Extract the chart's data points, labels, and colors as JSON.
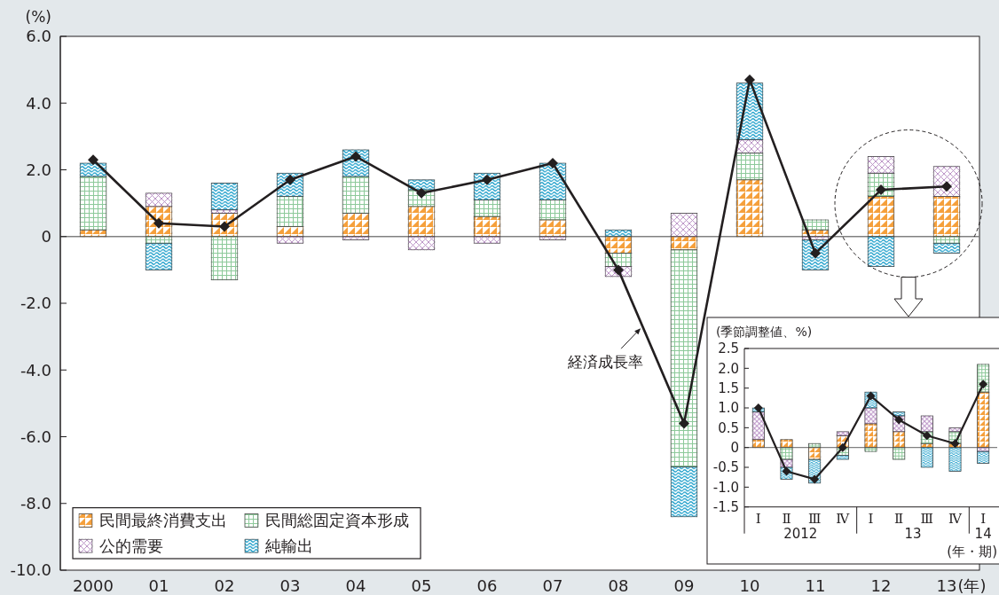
{
  "chart_data": [
    {
      "type": "bar",
      "stacked": true,
      "ylabel": "(%)",
      "xlabel": "(年)",
      "categories": [
        "2000",
        "01",
        "02",
        "03",
        "04",
        "05",
        "06",
        "07",
        "08",
        "09",
        "10",
        "11",
        "12",
        "13"
      ],
      "series": [
        {
          "name": "民間最終消費支出",
          "color": "#f5a03c",
          "values": [
            0.2,
            0.9,
            0.7,
            0.3,
            0.7,
            0.9,
            0.6,
            0.5,
            -0.5,
            -0.4,
            1.7,
            0.2,
            1.2,
            1.2
          ]
        },
        {
          "name": "民間総固定資本形成",
          "color": "#8dc99a",
          "values": [
            1.6,
            -0.2,
            -1.3,
            0.9,
            1.1,
            0.5,
            0.5,
            0.6,
            -0.4,
            -6.5,
            0.8,
            0.3,
            0.7,
            -0.2
          ]
        },
        {
          "name": "公的需要",
          "color": "#b58bc2",
          "values": [
            null,
            0.4,
            0.1,
            -0.2,
            -0.1,
            -0.4,
            -0.2,
            -0.1,
            -0.3,
            0.7,
            0.4,
            -0.1,
            0.5,
            0.9
          ]
        },
        {
          "name": "純輸出",
          "color": "#1a9dc9",
          "values": [
            0.4,
            -0.8,
            0.8,
            0.7,
            0.8,
            0.3,
            0.8,
            1.1,
            0.2,
            -1.5,
            1.7,
            -0.9,
            -0.9,
            -0.3
          ]
        },
        {
          "type": "line",
          "name": "経済成長率",
          "color": "#231f20",
          "values": [
            2.3,
            0.4,
            0.3,
            1.7,
            2.4,
            1.3,
            1.7,
            2.2,
            -1.0,
            -5.6,
            4.7,
            -0.5,
            1.4,
            1.5
          ]
        }
      ],
      "ylim": [
        -10,
        6
      ],
      "yticks": [
        {
          "value": 6,
          "label": "6.0"
        },
        {
          "value": 4,
          "label": "4.0"
        },
        {
          "value": 2,
          "label": "2.0"
        },
        0,
        {
          "value": -2,
          "label": "-2.0"
        },
        {
          "value": -4,
          "label": "-4.0"
        },
        {
          "value": -6,
          "label": "-6.0"
        },
        {
          "value": -8,
          "label": "-8.0"
        },
        {
          "value": -10,
          "label": "-10.0"
        }
      ],
      "marker": "diamond",
      "legend": "bottom left",
      "ref_lines": [
        {
          "axis": "y",
          "value": 0,
          "color": "#808080"
        }
      ]
    },
    {
      "type": "bar",
      "stacked": true,
      "ylabel": "(季節調整値、%)",
      "xlabel": "(年・期)",
      "categories": [
        "Ⅰ",
        "Ⅱ",
        "Ⅲ",
        "Ⅳ",
        "Ⅰ",
        "Ⅱ",
        "Ⅲ",
        "Ⅳ",
        "Ⅰ"
      ],
      "annotations": [
        "2012",
        "13",
        "14"
      ],
      "series": [
        {
          "color": "#f5a03c",
          "values": [
            0.2,
            0.2,
            -0.3,
            0.3,
            0.6,
            0.4,
            0.1,
            0.1,
            1.4
          ]
        },
        {
          "color": "#8dc99a",
          "values": [
            null,
            -0.3,
            0.1,
            -0.2,
            -0.1,
            -0.3,
            0.3,
            0.3,
            0.7
          ]
        },
        {
          "color": "#b58bc2",
          "values": [
            0.7,
            -0.2,
            null,
            0.1,
            0.4,
            0.4,
            0.4,
            0.1,
            -0.1
          ]
        },
        {
          "color": "#1a9dc9",
          "values": [
            0.1,
            -0.3,
            -0.6,
            -0.1,
            0.4,
            0.1,
            -0.5,
            -0.6,
            -0.3
          ]
        },
        {
          "type": "line",
          "color": "#231f20",
          "values": [
            1.0,
            -0.6,
            -0.8,
            0,
            1.3,
            0.7,
            0.3,
            0.1,
            1.6
          ]
        }
      ],
      "ylim": [
        -1.5,
        2.5
      ],
      "yticks": [
        2.5,
        {
          "value": 2,
          "label": "2.0"
        },
        1.5,
        {
          "value": 1,
          "label": "1.0"
        },
        0.5,
        0,
        -0.5,
        {
          "value": -1,
          "label": "-1.0"
        },
        -1.5
      ],
      "marker": "diamond",
      "ref_lines": [
        {
          "axis": "y",
          "value": 0,
          "color": "#808080"
        }
      ]
    }
  ]
}
